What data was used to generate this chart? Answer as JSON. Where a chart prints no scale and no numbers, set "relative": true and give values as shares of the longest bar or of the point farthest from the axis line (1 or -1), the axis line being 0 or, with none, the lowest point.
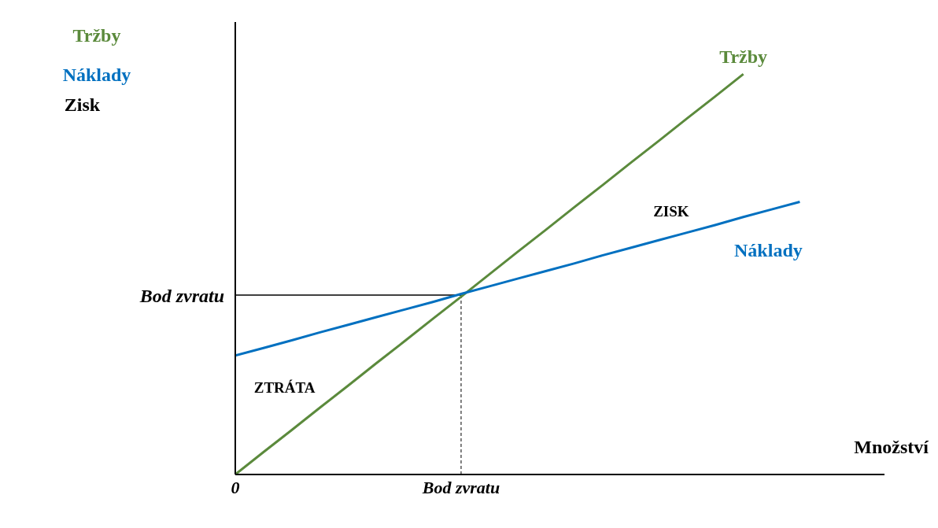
{
  "chart_data": {
    "type": "line",
    "relative": true,
    "xlabel": "Množství",
    "legend": "top left",
    "categories": [
      "0",
      null,
      null,
      null,
      null,
      null,
      null,
      null,
      "Bod zvratu",
      null,
      null,
      null,
      null,
      null,
      null,
      null,
      null,
      null,
      null,
      null,
      null,
      null,
      null,
      null
    ],
    "series": [
      {
        "name": "Tržby",
        "color": "#5b8a3c",
        "values": [
          0,
          0.056,
          0.111,
          0.167,
          0.222,
          0.278,
          0.333,
          0.389,
          0.444,
          0.5,
          0.556,
          0.611,
          0.667,
          0.722,
          0.778,
          0.833,
          0.889,
          0.944,
          1,
          null,
          null,
          null,
          null,
          null
        ]
      },
      {
        "name": "Náklady",
        "color": "#0070c0",
        "values": [
          0.297,
          0.316,
          0.335,
          0.355,
          0.374,
          0.393,
          0.412,
          0.431,
          0.451,
          0.47,
          0.489,
          0.508,
          0.527,
          0.547,
          0.566,
          0.585,
          0.604,
          0.623,
          0.643,
          0.662,
          0.681,
          null,
          null,
          null
        ]
      }
    ],
    "ref_lines": [
      {
        "axis": "y",
        "value": 0.448,
        "label": "Bod zvratu",
        "color": "#000000",
        "line_style": "solid"
      },
      {
        "axis": "x",
        "value": "Bod zvratu",
        "color": "#000000",
        "line_style": "dashed"
      }
    ],
    "annotations": [
      "Zisk",
      "ZISK",
      "ZTRÁTA"
    ]
  }
}
